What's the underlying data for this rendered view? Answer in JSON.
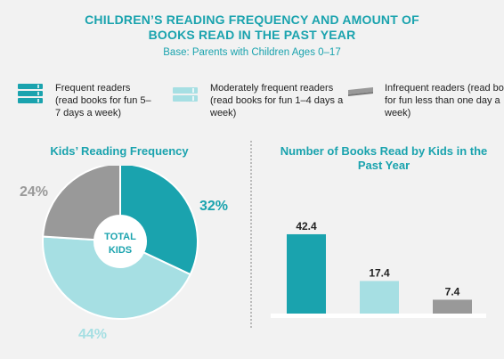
{
  "header": {
    "title_line1": "CHILDREN’S READING FREQUENCY AND AMOUNT OF",
    "title_line2": "BOOKS READ IN THE PAST YEAR",
    "subtitle": "Base: Parents with Children Ages 0–17"
  },
  "legend": [
    {
      "label": "Frequent readers (read books for fun 5–7 days a week)",
      "color": "#1aa3ae",
      "icon": "books-stack-icon"
    },
    {
      "label": "Moderately frequent readers (read books for fun 1–4 days a week)",
      "color": "#a6dfe3",
      "icon": "books-stack-icon"
    },
    {
      "label": "Infrequent readers (read books for fun less than one day a week)",
      "color": "#999999",
      "icon": "book-icon"
    }
  ],
  "colors": {
    "accent": "#1aa3ae",
    "frequent": "#1aa3ae",
    "moderate": "#a6dfe3",
    "infrequent": "#999999"
  },
  "chart_data": [
    {
      "type": "pie",
      "title": "Kids’ Reading Frequency",
      "center_label": "TOTAL KIDS",
      "categories": [
        "Frequent readers",
        "Moderately frequent readers",
        "Infrequent readers"
      ],
      "values": [
        32,
        44,
        24
      ],
      "value_labels": [
        "32%",
        "44%",
        "24%"
      ],
      "colors": [
        "#1aa3ae",
        "#a6dfe3",
        "#999999"
      ]
    },
    {
      "type": "bar",
      "title": "Number of Books Read by Kids in the Past Year",
      "categories": [
        "Frequent readers",
        "Moderately frequent readers",
        "Infrequent readers"
      ],
      "values": [
        42.4,
        17.4,
        7.4
      ],
      "value_labels": [
        "42.4",
        "17.4",
        "7.4"
      ],
      "colors": [
        "#1aa3ae",
        "#a6dfe3",
        "#999999"
      ],
      "ylim": [
        0,
        50
      ]
    }
  ]
}
